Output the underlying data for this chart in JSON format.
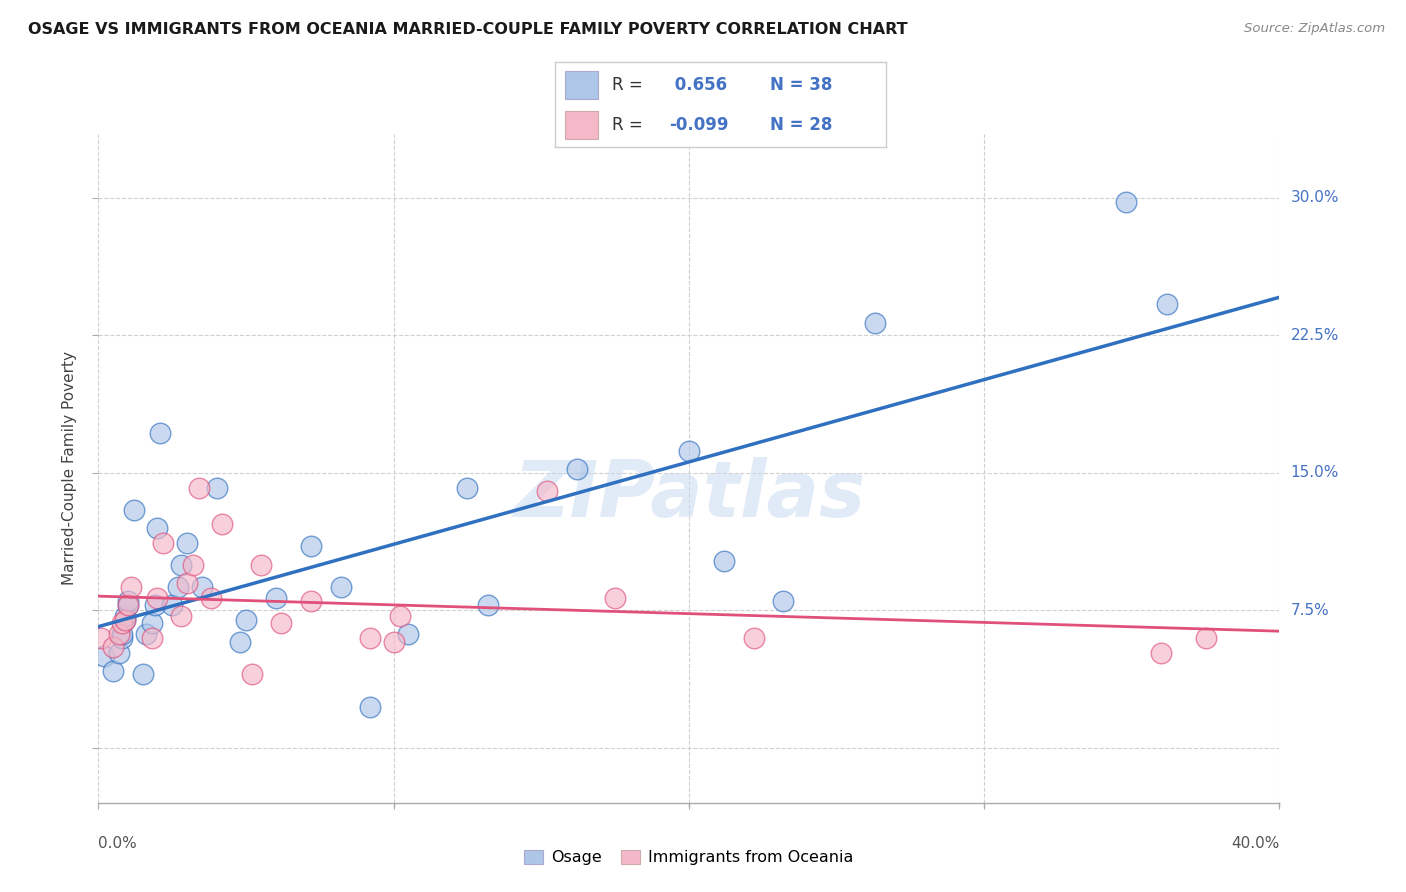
{
  "title": "OSAGE VS IMMIGRANTS FROM OCEANIA MARRIED-COUPLE FAMILY POVERTY CORRELATION CHART",
  "source": "Source: ZipAtlas.com",
  "ylabel": "Married-Couple Family Poverty",
  "xlim": [
    0.0,
    0.4
  ],
  "ylim": [
    -0.03,
    0.335
  ],
  "color_blue": "#aec6e8",
  "color_pink": "#f4b8c8",
  "line_blue": "#3070c0",
  "line_pink": "#e0507a",
  "ytick_color": "#4472c4",
  "osage_x": [
    0.002,
    0.005,
    0.007,
    0.008,
    0.008,
    0.009,
    0.009,
    0.01,
    0.01,
    0.012,
    0.015,
    0.016,
    0.018,
    0.019,
    0.02,
    0.021,
    0.025,
    0.027,
    0.028,
    0.03,
    0.035,
    0.04,
    0.048,
    0.05,
    0.06,
    0.072,
    0.082,
    0.092,
    0.105,
    0.125,
    0.132,
    0.162,
    0.2,
    0.212,
    0.232,
    0.263,
    0.348,
    0.362
  ],
  "osage_y": [
    0.05,
    0.042,
    0.052,
    0.06,
    0.062,
    0.07,
    0.072,
    0.078,
    0.08,
    0.13,
    0.04,
    0.062,
    0.068,
    0.078,
    0.12,
    0.172,
    0.078,
    0.088,
    0.1,
    0.112,
    0.088,
    0.142,
    0.058,
    0.07,
    0.082,
    0.11,
    0.088,
    0.022,
    0.062,
    0.142,
    0.078,
    0.152,
    0.162,
    0.102,
    0.08,
    0.232,
    0.298,
    0.242
  ],
  "oceania_x": [
    0.001,
    0.005,
    0.007,
    0.008,
    0.009,
    0.01,
    0.011,
    0.018,
    0.02,
    0.022,
    0.028,
    0.03,
    0.032,
    0.034,
    0.038,
    0.042,
    0.052,
    0.055,
    0.062,
    0.072,
    0.092,
    0.1,
    0.102,
    0.152,
    0.175,
    0.222,
    0.36,
    0.375
  ],
  "oceania_y": [
    0.06,
    0.055,
    0.062,
    0.068,
    0.07,
    0.078,
    0.088,
    0.06,
    0.082,
    0.112,
    0.072,
    0.09,
    0.1,
    0.142,
    0.082,
    0.122,
    0.04,
    0.1,
    0.068,
    0.08,
    0.06,
    0.058,
    0.072,
    0.14,
    0.082,
    0.06,
    0.052,
    0.06
  ],
  "watermark": "ZIPatlas",
  "ytick_vals": [
    0.0,
    0.075,
    0.15,
    0.225,
    0.3
  ],
  "ytick_labels": [
    "",
    "7.5%",
    "15.0%",
    "22.5%",
    "30.0%"
  ],
  "xtick_vals": [
    0.0,
    0.1,
    0.2,
    0.3,
    0.4
  ],
  "xtick_labels": [
    "0.0%",
    "",
    "",
    "",
    "40.0%"
  ],
  "legend_r1": " 0.656",
  "legend_n1": "N = 38",
  "legend_r2": "-0.099",
  "legend_n2": "N = 28"
}
